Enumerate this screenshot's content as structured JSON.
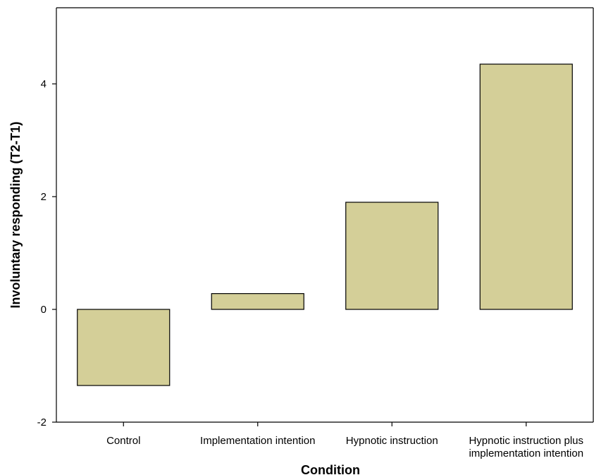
{
  "chart_data": {
    "type": "bar",
    "title": "",
    "xlabel": "Condition",
    "ylabel": "Involuntary responding (T2-T1)",
    "categories": [
      [
        "Control"
      ],
      [
        "Implementation intention"
      ],
      [
        "Hypnotic instruction"
      ],
      [
        "Hypnotic instruction plus",
        "implementation intention"
      ]
    ],
    "values": [
      -1.35,
      0.28,
      1.9,
      4.35
    ],
    "ylim": [
      -2,
      5.35
    ],
    "yticks": [
      -2,
      0,
      2,
      4
    ],
    "grid": false,
    "legend": "none",
    "bar_color": "#d4cf98",
    "bar_stroke": "#000000"
  }
}
